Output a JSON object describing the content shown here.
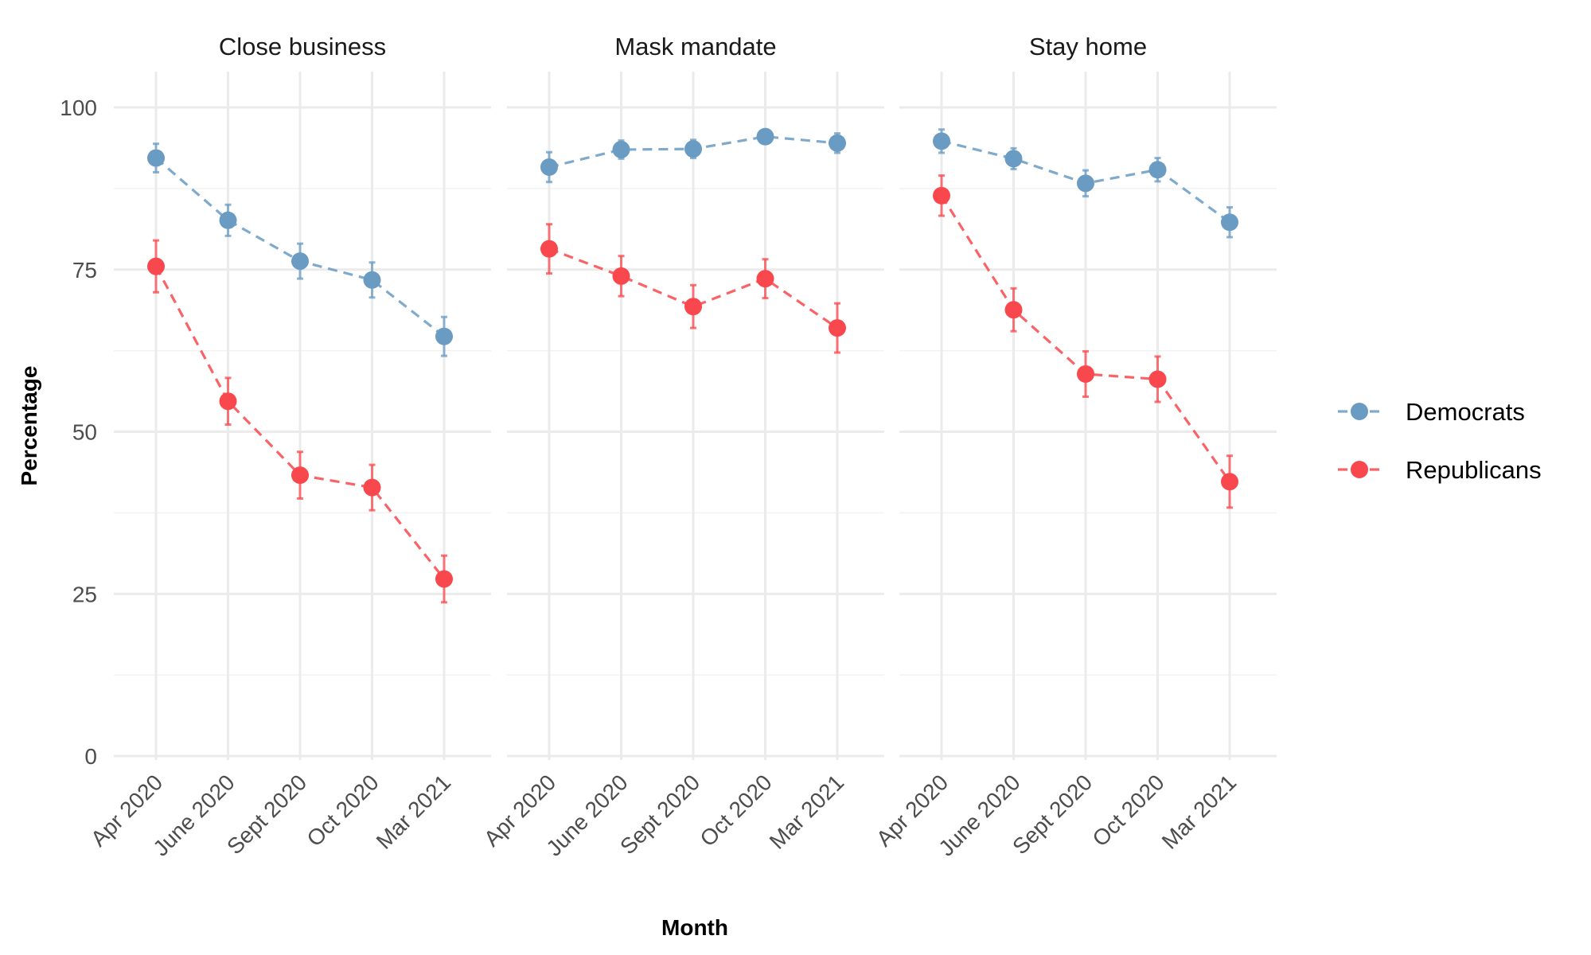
{
  "chart_data": {
    "type": "line",
    "xlabel": "Month",
    "ylabel": "Percentage",
    "ylim": [
      0,
      100
    ],
    "y_ticks": [
      "0",
      "25",
      "50",
      "75",
      "100"
    ],
    "categories": [
      "Apr 2020",
      "June 2020",
      "Sept 2020",
      "Oct 2020",
      "Mar 2021"
    ],
    "grid": true,
    "legend_position": "right",
    "line_style": "dashed",
    "error_bars": true,
    "series_names": [
      "Democrats",
      "Republicans"
    ],
    "colors": {
      "Democrats": "#6a9bc3",
      "Republicans": "#f8484d"
    },
    "facets": [
      {
        "title": "Close business",
        "series": [
          {
            "name": "Democrats",
            "values": [
              92.2,
              82.6,
              76.3,
              73.4,
              64.7
            ],
            "lower": [
              90.0,
              80.2,
              73.6,
              70.7,
              61.7
            ],
            "upper": [
              94.4,
              85.0,
              79.0,
              76.1,
              67.7
            ]
          },
          {
            "name": "Republicans",
            "values": [
              75.5,
              54.7,
              43.3,
              41.4,
              27.3
            ],
            "lower": [
              71.5,
              51.1,
              39.7,
              37.9,
              23.7
            ],
            "upper": [
              79.5,
              58.3,
              46.9,
              44.9,
              30.9
            ]
          }
        ]
      },
      {
        "title": "Mask mandate",
        "series": [
          {
            "name": "Democrats",
            "values": [
              90.8,
              93.5,
              93.6,
              95.5,
              94.5
            ],
            "lower": [
              88.5,
              92.1,
              92.2,
              94.5,
              93.0
            ],
            "upper": [
              93.1,
              94.9,
              95.0,
              96.5,
              96.0
            ]
          },
          {
            "name": "Republicans",
            "values": [
              78.2,
              74.0,
              69.3,
              73.6,
              66.0
            ],
            "lower": [
              74.4,
              70.9,
              66.0,
              70.6,
              62.2
            ],
            "upper": [
              82.0,
              77.1,
              72.6,
              76.6,
              69.8
            ]
          }
        ]
      },
      {
        "title": "Stay home",
        "series": [
          {
            "name": "Democrats",
            "values": [
              94.8,
              92.1,
              88.3,
              90.4,
              82.3
            ],
            "lower": [
              93.0,
              90.5,
              86.3,
              88.6,
              80.0
            ],
            "upper": [
              96.6,
              93.7,
              90.3,
              92.2,
              84.6
            ]
          },
          {
            "name": "Republicans",
            "values": [
              86.4,
              68.8,
              58.9,
              58.1,
              42.3
            ],
            "lower": [
              83.3,
              65.5,
              55.4,
              54.6,
              38.3
            ],
            "upper": [
              89.5,
              72.1,
              62.4,
              61.6,
              46.3
            ]
          }
        ]
      }
    ]
  }
}
